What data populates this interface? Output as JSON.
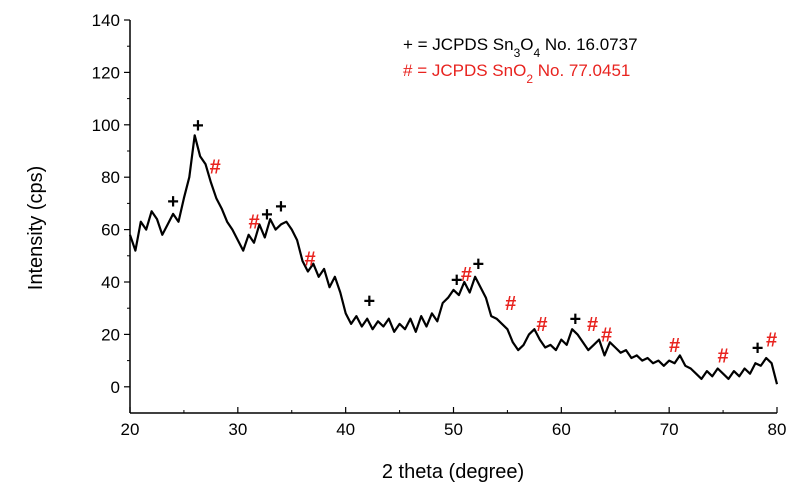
{
  "chart_data": {
    "type": "line",
    "xlabel": "2 theta (degree)",
    "ylabel": "Intensity (cps)",
    "xlim": [
      20,
      80
    ],
    "ylim": [
      -10,
      140
    ],
    "x_ticks": [
      20,
      30,
      40,
      50,
      60,
      70,
      80
    ],
    "y_ticks": [
      0,
      20,
      40,
      60,
      80,
      100,
      120,
      140
    ],
    "grid": false,
    "legend_position": "top-right",
    "colors": {
      "line": "#000000",
      "sn3o4": "#000000",
      "sno2": "#e8231f"
    },
    "legend": [
      {
        "symbol": "+",
        "prefix": "= JCPDS Sn",
        "sub1": "3",
        "mid": "O",
        "sub2": "4",
        "suffix": " No. 16.0737",
        "color": "#000000"
      },
      {
        "symbol": "#",
        "prefix": "= JCPDS SnO",
        "sub1": "2",
        "mid": "",
        "sub2": "",
        "suffix": " No. 77.0451",
        "color": "#e8231f"
      }
    ],
    "series": [
      {
        "x": [
          20,
          20.5,
          21,
          21.5,
          22,
          22.5,
          23,
          23.5,
          24,
          24.5,
          25,
          25.5,
          26,
          26.5,
          27,
          27.5,
          28,
          28.5,
          29,
          29.5,
          30,
          30.5,
          31,
          31.5,
          32,
          32.5,
          33,
          33.5,
          34,
          34.5,
          35,
          35.5,
          36,
          36.5,
          37,
          37.5,
          38,
          38.5,
          39,
          39.5,
          40,
          40.5,
          41,
          41.5,
          42,
          42.5,
          43,
          43.5,
          44,
          44.5,
          45,
          45.5,
          46,
          46.5,
          47,
          47.5,
          48,
          48.5,
          49,
          49.5,
          50,
          50.5,
          51,
          51.5,
          52,
          52.5,
          53,
          53.5,
          54,
          54.5,
          55,
          55.5,
          56,
          56.5,
          57,
          57.5,
          58,
          58.5,
          59,
          59.5,
          60,
          60.5,
          61,
          61.5,
          62,
          62.5,
          63,
          63.5,
          64,
          64.5,
          65,
          65.5,
          66,
          66.5,
          67,
          67.5,
          68,
          68.5,
          69,
          69.5,
          70,
          70.5,
          71,
          71.5,
          72,
          72.5,
          73,
          73.5,
          74,
          74.5,
          75,
          75.5,
          76,
          76.5,
          77,
          77.5,
          78,
          78.5,
          79,
          79.5,
          80
        ],
        "y": [
          58,
          52,
          63,
          60,
          67,
          64,
          58,
          62,
          66,
          63,
          72,
          80,
          96,
          88,
          85,
          78,
          72,
          68,
          63,
          60,
          56,
          52,
          58,
          55,
          62,
          57,
          64,
          60,
          62,
          63,
          60,
          56,
          48,
          44,
          47,
          42,
          45,
          38,
          42,
          36,
          28,
          24,
          27,
          23,
          26,
          22,
          25,
          23,
          26,
          21,
          24,
          22,
          26,
          21,
          27,
          23,
          28,
          25,
          32,
          34,
          37,
          35,
          40,
          36,
          42,
          38,
          34,
          27,
          26,
          24,
          22,
          17,
          14,
          16,
          20,
          22,
          18,
          15,
          16,
          14,
          18,
          16,
          22,
          20,
          17,
          14,
          16,
          18,
          12,
          17,
          15,
          13,
          14,
          11,
          12,
          10,
          11,
          9,
          10,
          8,
          10,
          9,
          12,
          8,
          7,
          5,
          3,
          6,
          4,
          7,
          5,
          3,
          6,
          4,
          7,
          5,
          9,
          8,
          11,
          9,
          1
        ]
      }
    ],
    "sn3o4_markers": [
      {
        "x": 24,
        "y": 71
      },
      {
        "x": 26.3,
        "y": 100
      },
      {
        "x": 32.7,
        "y": 66
      },
      {
        "x": 34,
        "y": 69
      },
      {
        "x": 42.2,
        "y": 33
      },
      {
        "x": 50.3,
        "y": 41
      },
      {
        "x": 52.3,
        "y": 47
      },
      {
        "x": 61.3,
        "y": 26
      },
      {
        "x": 78.2,
        "y": 15
      }
    ],
    "sno2_markers": [
      {
        "x": 27.9,
        "y": 84
      },
      {
        "x": 31.5,
        "y": 63
      },
      {
        "x": 36.7,
        "y": 49
      },
      {
        "x": 51.2,
        "y": 43
      },
      {
        "x": 55.3,
        "y": 32
      },
      {
        "x": 58.2,
        "y": 24
      },
      {
        "x": 62.9,
        "y": 24
      },
      {
        "x": 64.2,
        "y": 20
      },
      {
        "x": 70.5,
        "y": 16
      },
      {
        "x": 75,
        "y": 12
      },
      {
        "x": 79.5,
        "y": 18
      }
    ]
  }
}
